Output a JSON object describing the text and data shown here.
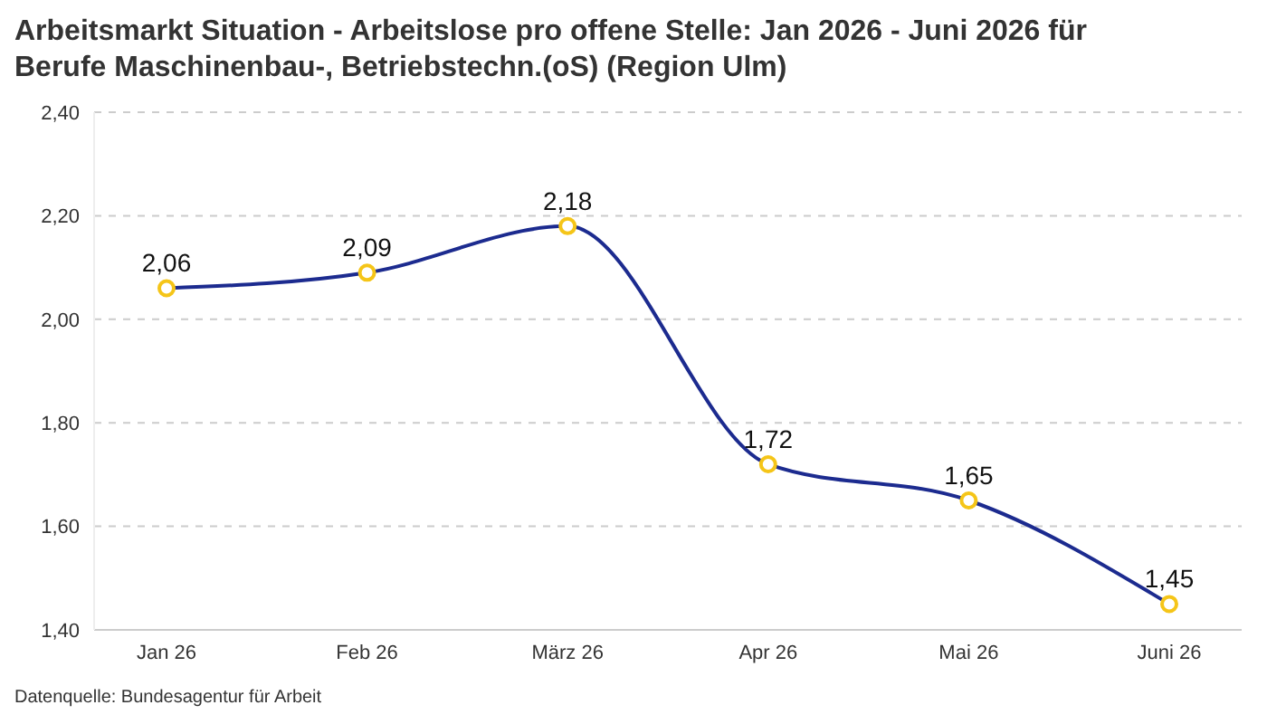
{
  "chart_data": {
    "type": "line",
    "title": "Arbeitsmarkt Situation - Arbeitslose pro offene Stelle: Jan 2026 - Juni 2026 für Berufe Maschinenbau-, Betriebstechn.(oS) (Region Ulm)",
    "categories": [
      "Jan 26",
      "Feb 26",
      "März 26",
      "Apr 26",
      "Mai 26",
      "Juni 26"
    ],
    "series": [
      {
        "color": "#1c2b8f",
        "values": [
          2.06,
          2.09,
          2.18,
          1.72,
          1.65,
          1.45
        ],
        "value_labels": [
          "2,06",
          "2,09",
          "2,18",
          "1,72",
          "1,65",
          "1,45"
        ]
      }
    ],
    "ylim": [
      1.4,
      2.4
    ],
    "yticks": [
      {
        "value": 1.4,
        "label": "1,40"
      },
      {
        "value": 1.6,
        "label": "1,60"
      },
      {
        "value": 1.8,
        "label": "1,80"
      },
      {
        "value": 2.0,
        "label": "2,00"
      },
      {
        "value": 2.2,
        "label": "2,20"
      },
      {
        "value": 2.4,
        "label": "2,40"
      }
    ],
    "grid": "y",
    "marker": "circle",
    "legend": false,
    "annotations": [
      "Datenquelle: Bundesagentur für Arbeit"
    ]
  }
}
